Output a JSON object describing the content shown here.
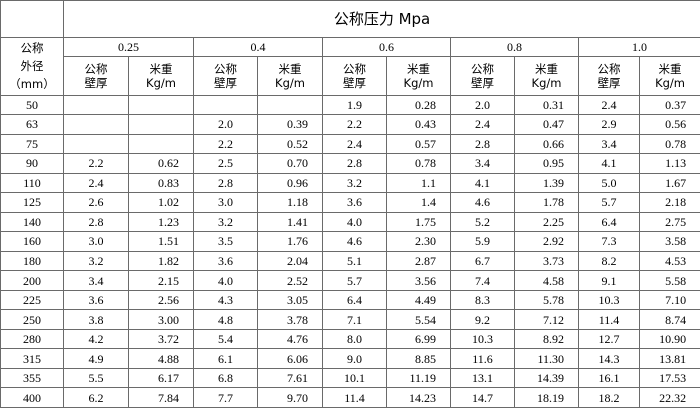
{
  "table": {
    "title": "公称压力 Mpa",
    "size_label": [
      "公称",
      "外径",
      "（mm）"
    ],
    "pressures": [
      "0.25",
      "0.4",
      "0.6",
      "0.8",
      "1.0"
    ],
    "subheaders": [
      [
        "公称",
        "壁厚"
      ],
      [
        "米重",
        "Kg/m"
      ],
      [
        "公称",
        "壁厚"
      ],
      [
        "米重",
        "Kg/m"
      ],
      [
        "公称",
        "壁厚"
      ],
      [
        "米重",
        "Kg/m"
      ],
      [
        "公称",
        "壁厚"
      ],
      [
        "米重",
        "Kg/m"
      ],
      [
        "公称",
        "壁厚"
      ],
      [
        "米重",
        "Kg/m"
      ]
    ],
    "rows": [
      [
        "50",
        null,
        null,
        null,
        null,
        "1.9",
        "0.28",
        "2.0",
        "0.31",
        "2.4",
        "0.37"
      ],
      [
        "63",
        null,
        null,
        "2.0",
        "0.39",
        "2.2",
        "0.43",
        "2.4",
        "0.47",
        "2.9",
        "0.56"
      ],
      [
        "75",
        null,
        null,
        "2.2",
        "0.52",
        "2.4",
        "0.57",
        "2.8",
        "0.66",
        "3.4",
        "0.78"
      ],
      [
        "90",
        "2.2",
        "0.62",
        "2.5",
        "0.70",
        "2.8",
        "0.78",
        "3.4",
        "0.95",
        "4.1",
        "1.13"
      ],
      [
        "110",
        "2.4",
        "0.83",
        "2.8",
        "0.96",
        "3.2",
        "1.1",
        "4.1",
        "1.39",
        "5.0",
        "1.67"
      ],
      [
        "125",
        "2.6",
        "1.02",
        "3.0",
        "1.18",
        "3.6",
        "1.4",
        "4.6",
        "1.78",
        "5.7",
        "2.18"
      ],
      [
        "140",
        "2.8",
        "1.23",
        "3.2",
        "1.41",
        "4.0",
        "1.75",
        "5.2",
        "2.25",
        "6.4",
        "2.75"
      ],
      [
        "160",
        "3.0",
        "1.51",
        "3.5",
        "1.76",
        "4.6",
        "2.30",
        "5.9",
        "2.92",
        "7.3",
        "3.58"
      ],
      [
        "180",
        "3.2",
        "1.82",
        "3.6",
        "2.04",
        "5.1",
        "2.87",
        "6.7",
        "3.73",
        "8.2",
        "4.53"
      ],
      [
        "200",
        "3.4",
        "2.15",
        "4.0",
        "2.52",
        "5.7",
        "3.56",
        "7.4",
        "4.58",
        "9.1",
        "5.58"
      ],
      [
        "225",
        "3.6",
        "2.56",
        "4.3",
        "3.05",
        "6.4",
        "4.49",
        "8.3",
        "5.78",
        "10.3",
        "7.10"
      ],
      [
        "250",
        "3.8",
        "3.00",
        "4.8",
        "3.78",
        "7.1",
        "5.54",
        "9.2",
        "7.12",
        "11.4",
        "8.74"
      ],
      [
        "280",
        "4.2",
        "3.72",
        "5.4",
        "4.76",
        "8.0",
        "6.99",
        "10.3",
        "8.92",
        "12.7",
        "10.90"
      ],
      [
        "315",
        "4.9",
        "4.88",
        "6.1",
        "6.06",
        "9.0",
        "8.85",
        "11.6",
        "11.30",
        "14.3",
        "13.81"
      ],
      [
        "355",
        "5.5",
        "6.17",
        "6.8",
        "7.61",
        "10.1",
        "11.19",
        "13.1",
        "14.39",
        "16.1",
        "17.53"
      ],
      [
        "400",
        "6.2",
        "7.84",
        "7.7",
        "9.70",
        "11.4",
        "14.23",
        "14.7",
        "18.19",
        "18.2",
        "22.32"
      ]
    ]
  }
}
